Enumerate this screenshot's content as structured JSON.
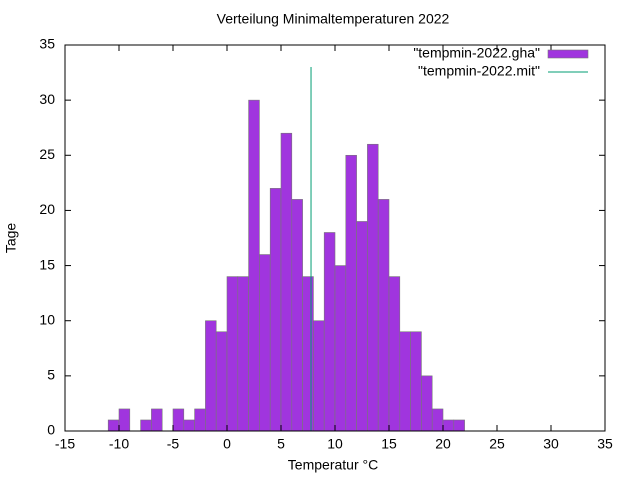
{
  "chart_data": {
    "type": "histogram",
    "title": "Verteilung Minimaltemperaturen 2022",
    "xlabel": "Temperatur °C",
    "ylabel": "Tage",
    "bins": [
      -11,
      -10,
      -9,
      -8,
      -7,
      -6,
      -5,
      -4,
      -3,
      -2,
      -1,
      0,
      1,
      2,
      3,
      4,
      5,
      6,
      7,
      8,
      9,
      10,
      11,
      12,
      13,
      14,
      15,
      16,
      17,
      18,
      19,
      20,
      21,
      22
    ],
    "series": [
      {
        "name": "\"tempmin-2022.gha\"",
        "color": "#a035de",
        "values": [
          1,
          2,
          0,
          1,
          2,
          0,
          2,
          1,
          2,
          10,
          9,
          14,
          14,
          30,
          16,
          22,
          27,
          21,
          14,
          10,
          18,
          15,
          25,
          19,
          26,
          21,
          14,
          9,
          9,
          5,
          2,
          1,
          1
        ]
      },
      {
        "name": "\"tempmin-2022.mit\"",
        "color": "#009e73",
        "type": "line",
        "x": [
          7.78,
          7.78
        ],
        "values": [
          0,
          33
        ]
      }
    ],
    "xlim": [
      -15,
      35
    ],
    "ylim": [
      0,
      35
    ],
    "xticks": [
      -15,
      -10,
      -5,
      0,
      5,
      10,
      15,
      20,
      25,
      30,
      35
    ],
    "yticks": [
      0,
      5,
      10,
      15,
      20,
      25,
      30,
      35
    ],
    "legend": "upper right"
  }
}
